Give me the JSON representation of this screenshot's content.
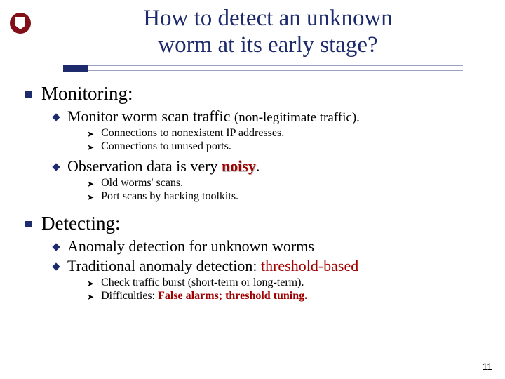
{
  "title_line1": "How to detect an unknown",
  "title_line2": "worm at its early stage?",
  "sections": {
    "monitoring": {
      "heading": "Monitoring:",
      "item1": {
        "main": "Monitor worm scan traffic ",
        "paren": "(non-legitimate traffic).",
        "sub1": "Connections to nonexistent IP addresses.",
        "sub2": "Connections to unused ports."
      },
      "item2": {
        "pre": "Observation data is very ",
        "emph": "noisy",
        "post": ".",
        "sub1": "Old worms' scans.",
        "sub2": "Port scans by hacking toolkits."
      }
    },
    "detecting": {
      "heading": "Detecting:",
      "item1": "Anomaly detection for unknown worms",
      "item2": {
        "pre": "Traditional anomaly detection: ",
        "emph": "threshold-based"
      },
      "sub1": "Check traffic burst (short-term or long-term).",
      "sub2": {
        "pre": "Difficulties: ",
        "emph": "False alarms; threshold tuning."
      }
    }
  },
  "page_number": "11",
  "colors": {
    "title": "#1d2a6c",
    "bullet_primary": "#1d2a6c",
    "emphasis_red": "#a00000",
    "rule_light": "#9aa3c2",
    "logo_bg": "#821019",
    "text": "#000000",
    "background": "#ffffff"
  },
  "fonts": {
    "title_size_pt": 33,
    "lvl1_size_pt": 27,
    "lvl2_size_pt": 22,
    "lvl3_size_pt": 16,
    "family": "Times New Roman"
  }
}
